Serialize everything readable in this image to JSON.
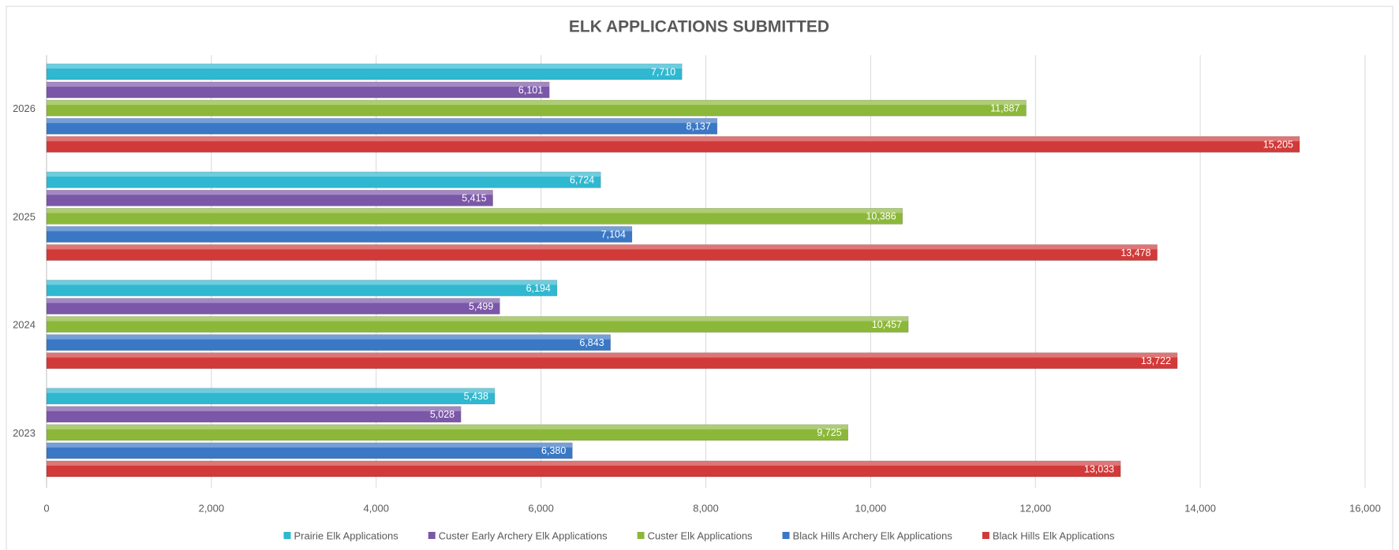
{
  "chart_data": {
    "type": "bar",
    "orientation": "horizontal",
    "title": "ELK APPLICATIONS SUBMITTED",
    "categories": [
      "2023",
      "2024",
      "2025",
      "2026"
    ],
    "series": [
      {
        "name": "Prairie Elk Applications",
        "color": "#2fb8d0",
        "values": [
          5438,
          6194,
          6724,
          7710
        ],
        "value_labels": [
          "5,438",
          "6,194",
          "6,724",
          "7,710"
        ]
      },
      {
        "name": "Custer Early Archery Elk Applications",
        "color": "#7b57a8",
        "values": [
          5028,
          5499,
          5415,
          6101
        ],
        "value_labels": [
          "5,028",
          "5,499",
          "5,415",
          "6,101"
        ]
      },
      {
        "name": "Custer Elk Applications",
        "color": "#8cb83a",
        "values": [
          9725,
          10457,
          10386,
          11887
        ],
        "value_labels": [
          "9,725",
          "10,457",
          "10,386",
          "11,887"
        ]
      },
      {
        "name": "Black Hills Archery Elk Applications",
        "color": "#3a78c6",
        "values": [
          6380,
          6843,
          7104,
          8137
        ],
        "value_labels": [
          "6,380",
          "6,843",
          "7,104",
          "8,137"
        ]
      },
      {
        "name": "Black Hills Elk Applications",
        "color": "#d23a3a",
        "values": [
          13033,
          13722,
          13478,
          15205
        ],
        "value_labels": [
          "13,033",
          "13,722",
          "13,478",
          "15,205"
        ]
      }
    ],
    "xlim": [
      0,
      16000
    ],
    "xticks": [
      0,
      {
        "value": 2000,
        "label": "2,000"
      },
      {
        "value": 4000,
        "label": "4,000"
      },
      {
        "value": 6000,
        "label": "6,000"
      },
      {
        "value": 8000,
        "label": "8,000"
      },
      {
        "value": 10000,
        "label": "10,000"
      },
      {
        "value": 12000,
        "label": "12,000"
      },
      {
        "value": 14000,
        "label": "14,000"
      },
      {
        "value": 16000,
        "label": "16,000"
      }
    ],
    "grid": true,
    "legend": "bottom"
  }
}
